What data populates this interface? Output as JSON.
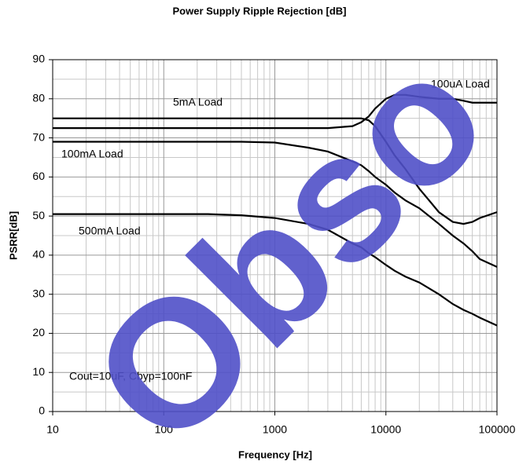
{
  "chart_data": {
    "type": "line",
    "title": "Power Supply Ripple Rejection [dB]",
    "xlabel": "Frequency [Hz]",
    "ylabel": "PSRR[dB]",
    "xscale": "log",
    "xlim": [
      10,
      100000
    ],
    "xticks": [
      10,
      100,
      1000,
      10000,
      100000
    ],
    "xminorticks": [
      20,
      30,
      40,
      50,
      60,
      70,
      80,
      90,
      200,
      300,
      400,
      500,
      600,
      700,
      800,
      900,
      2000,
      3000,
      4000,
      5000,
      6000,
      7000,
      8000,
      9000,
      20000,
      30000,
      40000,
      50000,
      60000,
      70000,
      80000,
      90000
    ],
    "ylim": [
      0,
      90
    ],
    "yticks": [
      0,
      10,
      20,
      30,
      40,
      50,
      60,
      70,
      80,
      90
    ],
    "yminorticks": [
      5,
      15,
      25,
      35,
      45,
      55,
      65,
      75,
      85
    ],
    "grid": true,
    "x": [
      10,
      100,
      250,
      500,
      1000,
      2000,
      3000,
      5000,
      6000,
      7000,
      8000,
      10000,
      12000,
      15000,
      20000,
      30000,
      40000,
      50000,
      60000,
      70000,
      100000
    ],
    "series": [
      {
        "name": "5mA Load",
        "color": "#000000",
        "values": [
          75,
          75,
          75,
          75,
          75,
          75,
          75,
          75,
          75,
          74.5,
          73,
          69,
          65.5,
          62,
          57,
          51,
          48.5,
          48,
          48.5,
          49.5,
          51
        ]
      },
      {
        "name": "100uA Load",
        "color": "#000000",
        "values": [
          72.5,
          72.5,
          72.5,
          72.5,
          72.5,
          72.5,
          72.5,
          73,
          74,
          75.5,
          77.5,
          80,
          81,
          81,
          80.5,
          80,
          80,
          79.5,
          79,
          79,
          79
        ]
      },
      {
        "name": "100mA Load",
        "color": "#000000",
        "values": [
          69,
          69,
          69,
          69,
          68.8,
          67.5,
          66.5,
          64,
          63,
          61.5,
          60,
          58,
          56,
          54,
          52,
          48,
          45,
          43,
          41,
          39,
          37
        ]
      },
      {
        "name": "500mA Load",
        "color": "#000000",
        "values": [
          50.5,
          50.5,
          50.5,
          50.2,
          49.5,
          48,
          46.5,
          43,
          42,
          40.5,
          39.5,
          37.5,
          36,
          34.5,
          33,
          30,
          27.5,
          26,
          25,
          24,
          22
        ]
      }
    ],
    "annotations": [
      "Cout=10uF, Cbyp=100nF"
    ],
    "watermark": "Obso"
  }
}
